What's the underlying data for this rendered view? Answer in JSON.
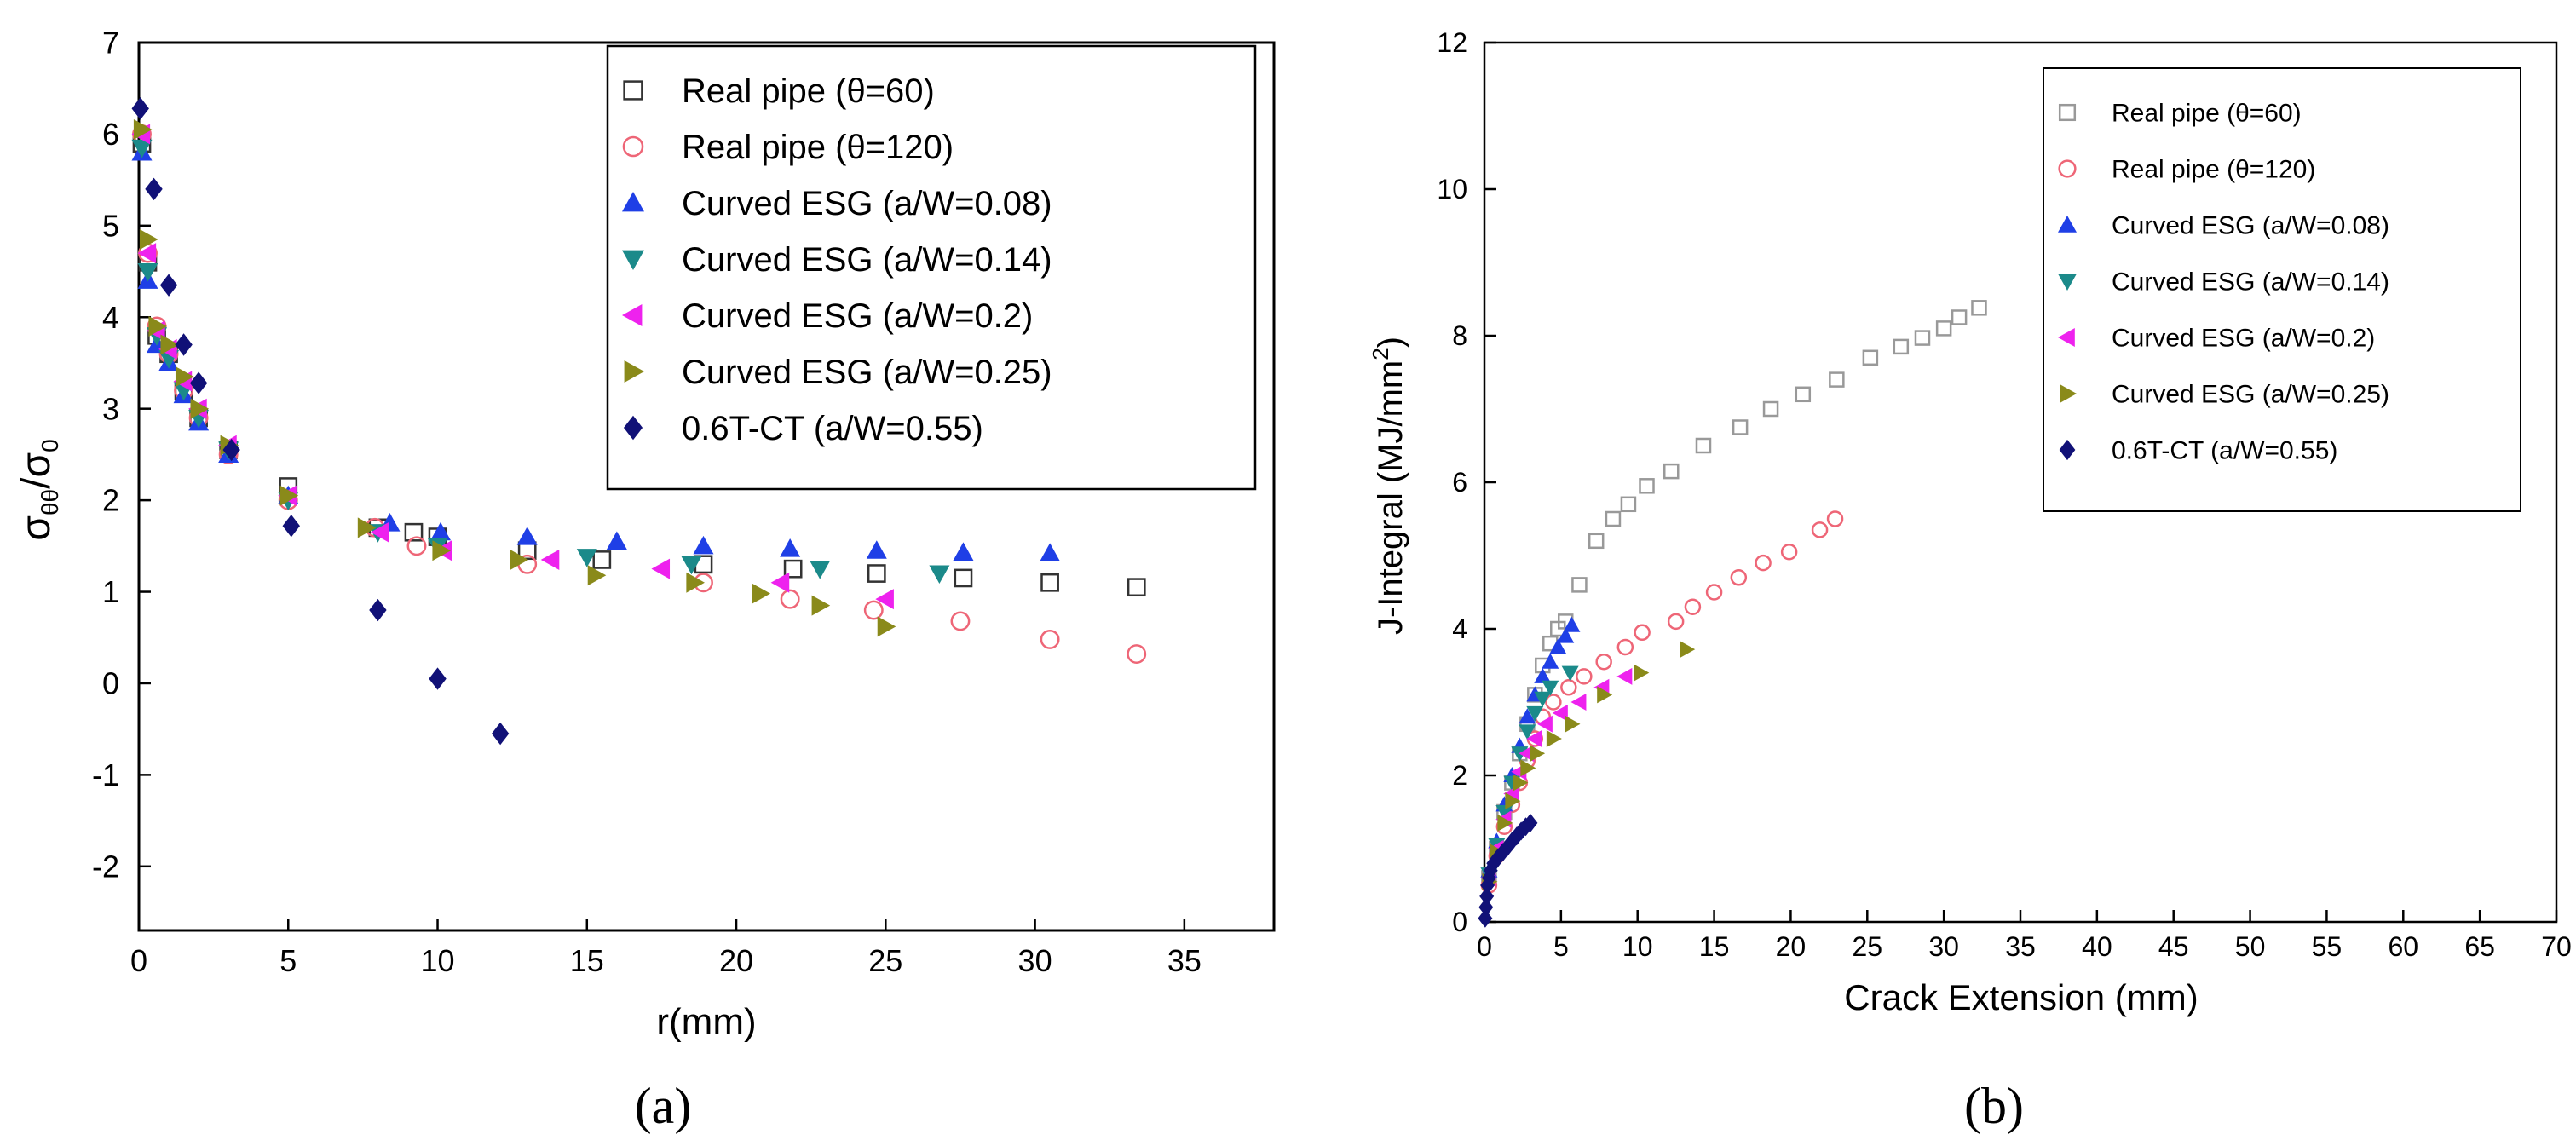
{
  "chart_data": [
    {
      "type": "scatter",
      "panel": "a",
      "caption": "(a)",
      "xlabel": "r(mm)",
      "ylabel": "σθθ/σ0",
      "ylabel_main": "σ",
      "ylabel_sub1": "θθ",
      "ylabel_slash": "/σ",
      "ylabel_sub2": "0",
      "xlim": [
        0,
        38
      ],
      "ylim": [
        -2.7,
        7
      ],
      "xticks": [
        0,
        5,
        10,
        15,
        20,
        25,
        30,
        35
      ],
      "xtick_labels": [
        "0",
        "5",
        "10",
        "15",
        "20",
        "25",
        "30",
        "35"
      ],
      "yticks": [
        -2,
        -1,
        0,
        1,
        2,
        3,
        4,
        5,
        6,
        7
      ],
      "ytick_labels": [
        "-2",
        "-1",
        "0",
        "1",
        "2",
        "3",
        "4",
        "5",
        "6",
        "7"
      ],
      "legend_position": "top-right",
      "series": [
        {
          "name": "Real pipe (θ=60)",
          "marker": "square",
          "color": "#333333",
          "x": [
            0.1,
            0.3,
            0.6,
            1.0,
            1.5,
            2.0,
            3.0,
            5.0,
            8.0,
            9.2,
            10.0,
            13.0,
            15.5,
            18.9,
            21.9,
            24.7,
            27.6,
            30.5,
            33.4
          ],
          "y": [
            5.9,
            4.6,
            3.8,
            3.6,
            3.2,
            2.9,
            2.55,
            2.15,
            1.7,
            1.65,
            1.6,
            1.45,
            1.35,
            1.3,
            1.25,
            1.2,
            1.15,
            1.1,
            1.05
          ]
        },
        {
          "name": "Real pipe (θ=120)",
          "marker": "circle",
          "color": "#ee6677",
          "x": [
            0.1,
            0.3,
            0.6,
            1.0,
            1.5,
            2.0,
            3.0,
            5.0,
            7.9,
            9.3,
            13.0,
            18.9,
            21.8,
            24.6,
            27.5,
            30.5,
            33.4
          ],
          "y": [
            6.0,
            4.7,
            3.9,
            3.6,
            3.2,
            2.9,
            2.5,
            2.0,
            1.7,
            1.5,
            1.3,
            1.1,
            0.92,
            0.8,
            0.68,
            0.48,
            0.32
          ]
        },
        {
          "name": "Curved ESG (a/W=0.08)",
          "marker": "triangle-up",
          "color": "#1f3fe6",
          "x": [
            0.1,
            0.3,
            0.6,
            1.0,
            1.5,
            2.0,
            3.0,
            5.0,
            8.4,
            10.1,
            13.0,
            16.0,
            18.9,
            21.8,
            24.7,
            27.6,
            30.5
          ],
          "y": [
            5.8,
            4.4,
            3.7,
            3.5,
            3.15,
            2.85,
            2.5,
            2.05,
            1.75,
            1.65,
            1.6,
            1.55,
            1.5,
            1.47,
            1.45,
            1.43,
            1.42
          ]
        },
        {
          "name": "Curved ESG (a/W=0.14)",
          "marker": "triangle-down",
          "color": "#1b8a8a",
          "x": [
            0.1,
            0.3,
            0.6,
            1.0,
            1.5,
            2.0,
            3.0,
            5.0,
            8.0,
            10.0,
            15.0,
            18.5,
            22.8,
            26.8
          ],
          "y": [
            5.85,
            4.5,
            3.8,
            3.55,
            3.2,
            2.9,
            2.55,
            2.0,
            1.65,
            1.5,
            1.38,
            1.3,
            1.25,
            1.2
          ]
        },
        {
          "name": "Curved ESG (a/W=0.2)",
          "marker": "triangle-left",
          "color": "#ee22ee",
          "x": [
            0.1,
            0.3,
            0.6,
            1.0,
            1.5,
            2.0,
            3.0,
            5.0,
            8.1,
            10.2,
            13.8,
            17.5,
            21.5,
            25.0
          ],
          "y": [
            6.0,
            4.7,
            3.85,
            3.65,
            3.3,
            3.0,
            2.6,
            2.05,
            1.65,
            1.45,
            1.35,
            1.25,
            1.1,
            0.92
          ]
        },
        {
          "name": "Curved ESG (a/W=0.25)",
          "marker": "triangle-right",
          "color": "#8a8a1a",
          "x": [
            0.1,
            0.3,
            0.6,
            1.0,
            1.5,
            2.0,
            3.0,
            5.0,
            7.6,
            10.1,
            12.7,
            15.3,
            18.6,
            20.8,
            22.8,
            25.0
          ],
          "y": [
            6.05,
            4.85,
            3.9,
            3.7,
            3.35,
            3.0,
            2.6,
            2.05,
            1.7,
            1.45,
            1.35,
            1.18,
            1.1,
            0.98,
            0.85,
            0.62
          ]
        },
        {
          "name": "0.6T-CT (a/W=0.55)",
          "marker": "diamond",
          "color": "#111177",
          "x": [
            0.05,
            0.5,
            1.0,
            1.5,
            2.0,
            3.1,
            5.1,
            8.0,
            10.0,
            12.1
          ],
          "y": [
            6.28,
            5.4,
            4.35,
            3.7,
            3.28,
            2.55,
            1.72,
            0.8,
            0.05,
            -0.55
          ]
        }
      ]
    },
    {
      "type": "scatter",
      "panel": "b",
      "caption": "(b)",
      "xlabel": "Crack Extension (mm)",
      "ylabel": "J-Integral (MJ/mm2)",
      "ylabel_main": "J-Integral (MJ/mm",
      "ylabel_sup": "2",
      "ylabel_close": ")",
      "xlim": [
        0,
        70
      ],
      "ylim": [
        0,
        12
      ],
      "xticks": [
        0,
        5,
        10,
        15,
        20,
        25,
        30,
        35,
        40,
        45,
        50,
        55,
        60,
        65,
        70
      ],
      "xtick_labels": [
        "0",
        "5",
        "10",
        "15",
        "20",
        "25",
        "30",
        "35",
        "40",
        "45",
        "50",
        "55",
        "60",
        "65",
        "70"
      ],
      "yticks": [
        0,
        2,
        4,
        6,
        8,
        10,
        12
      ],
      "ytick_labels": [
        "0",
        "2",
        "4",
        "6",
        "8",
        "10",
        "12"
      ],
      "legend_position": "top-right",
      "series": [
        {
          "name": "Real pipe (θ=60)",
          "marker": "square",
          "color": "#999999",
          "x": [
            0.3,
            0.8,
            1.3,
            1.8,
            2.3,
            2.8,
            3.3,
            3.8,
            4.3,
            4.8,
            5.3,
            6.2,
            7.3,
            8.4,
            9.4,
            10.6,
            12.2,
            14.3,
            16.7,
            18.7,
            20.8,
            23.0,
            25.2,
            27.2,
            28.6,
            30.0,
            31.0,
            32.3
          ],
          "y": [
            0.6,
            1.0,
            1.5,
            1.9,
            2.3,
            2.7,
            3.1,
            3.5,
            3.8,
            4.0,
            4.1,
            4.6,
            5.2,
            5.5,
            5.7,
            5.95,
            6.15,
            6.5,
            6.75,
            7.0,
            7.2,
            7.4,
            7.7,
            7.85,
            7.97,
            8.1,
            8.25,
            8.38
          ]
        },
        {
          "name": "Real pipe (θ=120)",
          "marker": "circle",
          "color": "#ee6677",
          "x": [
            0.3,
            0.8,
            1.3,
            1.8,
            2.3,
            2.8,
            3.3,
            3.8,
            4.5,
            5.5,
            6.5,
            7.8,
            9.2,
            10.3,
            12.5,
            13.6,
            15.0,
            16.6,
            18.2,
            19.9,
            21.9,
            22.9
          ],
          "y": [
            0.5,
            0.9,
            1.3,
            1.6,
            1.9,
            2.2,
            2.5,
            2.8,
            3.0,
            3.2,
            3.35,
            3.55,
            3.75,
            3.95,
            4.1,
            4.3,
            4.5,
            4.7,
            4.9,
            5.05,
            5.35,
            5.5
          ]
        },
        {
          "name": "Curved ESG (a/W=0.08)",
          "marker": "triangle-up",
          "color": "#1f3fe6",
          "x": [
            0.3,
            0.8,
            1.3,
            1.8,
            2.3,
            2.8,
            3.3,
            3.8,
            4.3,
            4.8,
            5.3,
            5.7
          ],
          "y": [
            0.7,
            1.1,
            1.6,
            2.0,
            2.4,
            2.8,
            3.1,
            3.35,
            3.55,
            3.75,
            3.9,
            4.05
          ]
        },
        {
          "name": "Curved ESG (a/W=0.14)",
          "marker": "triangle-down",
          "color": "#1b8a8a",
          "x": [
            0.3,
            0.8,
            1.3,
            1.8,
            2.3,
            2.8,
            3.3,
            3.8,
            4.3,
            5.6
          ],
          "y": [
            0.65,
            1.05,
            1.5,
            1.9,
            2.3,
            2.6,
            2.85,
            3.05,
            3.2,
            3.4
          ]
        },
        {
          "name": "Curved ESG (a/W=0.2)",
          "marker": "triangle-left",
          "color": "#ee22ee",
          "x": [
            0.3,
            0.8,
            1.3,
            1.8,
            2.3,
            2.8,
            3.3,
            4.0,
            5.0,
            6.2,
            7.7,
            9.2
          ],
          "y": [
            0.6,
            1.0,
            1.4,
            1.75,
            2.05,
            2.3,
            2.5,
            2.7,
            2.85,
            3.0,
            3.2,
            3.35
          ]
        },
        {
          "name": "Curved ESG (a/W=0.25)",
          "marker": "triangle-right",
          "color": "#8a8a1a",
          "x": [
            0.3,
            0.8,
            1.3,
            1.8,
            2.3,
            2.8,
            3.4,
            4.5,
            5.7,
            7.8,
            10.2,
            13.2
          ],
          "y": [
            0.55,
            0.95,
            1.35,
            1.65,
            1.9,
            2.1,
            2.3,
            2.5,
            2.7,
            3.1,
            3.4,
            3.72
          ]
        },
        {
          "name": "0.6T-CT (a/W=0.55)",
          "marker": "diamond",
          "color": "#111177",
          "x": [
            0.05,
            0.1,
            0.15,
            0.2,
            0.3,
            0.4,
            0.6,
            0.9,
            1.2,
            1.5,
            1.8,
            2.1,
            2.4,
            2.7,
            3.0
          ],
          "y": [
            0.05,
            0.2,
            0.35,
            0.5,
            0.6,
            0.7,
            0.8,
            0.88,
            0.95,
            1.02,
            1.1,
            1.17,
            1.24,
            1.3,
            1.35
          ]
        }
      ]
    }
  ]
}
